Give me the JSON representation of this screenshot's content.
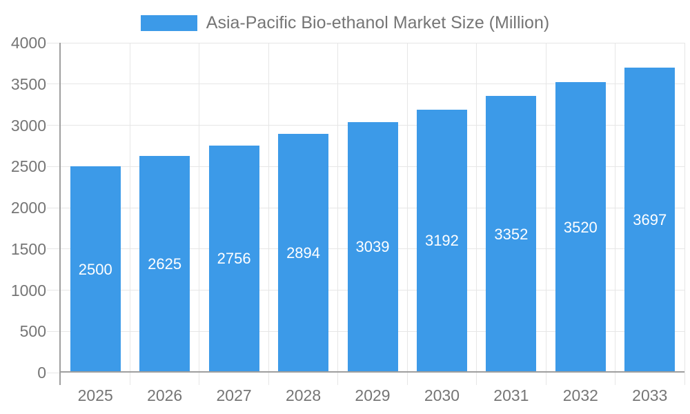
{
  "chart_data": {
    "type": "bar",
    "title": "Asia-Pacific Bio-ethanol Market Size (Million)",
    "series_name": "Asia-Pacific Bio-ethanol Market Size (Million)",
    "categories": [
      "2025",
      "2026",
      "2027",
      "2028",
      "2029",
      "2030",
      "2031",
      "2032",
      "2033"
    ],
    "values": [
      2500,
      2625,
      2756,
      2894,
      3039,
      3192,
      3352,
      3520,
      3697
    ],
    "bar_value_labels": [
      "2500",
      "2625",
      "2756",
      "2894",
      "3039",
      "3192",
      "3352",
      "3520",
      "3697"
    ],
    "xlabel": "",
    "ylabel": "",
    "ylim": [
      0,
      4000
    ],
    "y_tick_step": 500,
    "y_tick_labels": [
      "0",
      "500",
      "1000",
      "1500",
      "2000",
      "2500",
      "3000",
      "3500",
      "4000"
    ],
    "grid": true,
    "legend_position": "top-center",
    "value_labels_position": "inside-center",
    "colors": {
      "bar": "#3c9ae8",
      "grid": "#e6e6e6",
      "axis": "#9e9e9e",
      "tick_text": "#757575",
      "bar_label_text": "#ffffff",
      "background": "#ffffff"
    }
  }
}
